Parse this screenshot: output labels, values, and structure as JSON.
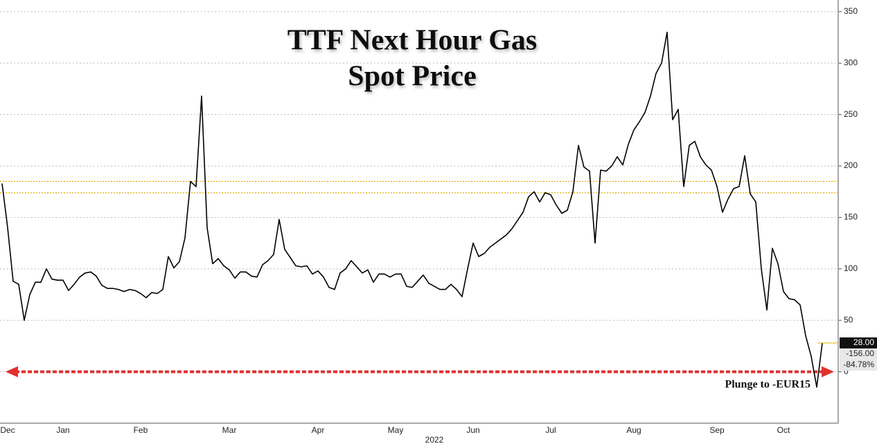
{
  "chart_data": {
    "type": "line",
    "title_lines": [
      "TTF Next Hour Gas",
      "Spot Price"
    ],
    "categories": [
      null,
      "Dec",
      null,
      null,
      null,
      null,
      null,
      null,
      null,
      null,
      null,
      "Jan",
      null,
      null,
      null,
      null,
      null,
      null,
      null,
      null,
      null,
      null,
      null,
      null,
      null,
      "Feb",
      null,
      null,
      null,
      null,
      null,
      null,
      null,
      null,
      null,
      null,
      null,
      null,
      null,
      null,
      null,
      "Mar",
      null,
      null,
      null,
      null,
      null,
      null,
      null,
      null,
      null,
      null,
      null,
      null,
      null,
      null,
      null,
      "Apr",
      null,
      null,
      null,
      null,
      null,
      null,
      null,
      null,
      null,
      null,
      null,
      null,
      null,
      "May",
      null,
      null,
      null,
      null,
      null,
      null,
      null,
      null,
      null,
      null,
      null,
      null,
      null,
      "Jun",
      null,
      null,
      null,
      null,
      null,
      null,
      null,
      null,
      null,
      null,
      null,
      null,
      null,
      "Jul",
      null,
      null,
      null,
      null,
      null,
      null,
      null,
      null,
      null,
      null,
      null,
      null,
      null,
      null,
      "Aug",
      null,
      null,
      null,
      null,
      null,
      null,
      null,
      null,
      null,
      null,
      null,
      null,
      null,
      null,
      "Sep",
      null,
      null,
      null,
      null,
      null,
      null,
      null,
      null,
      null,
      null,
      null,
      "Oct",
      null,
      null,
      null,
      null,
      null,
      null,
      null
    ],
    "year_label": "2022",
    "series": [
      {
        "color": "#000000",
        "values": [
          183,
          140,
          88,
          85,
          50,
          75,
          87,
          87,
          100,
          90,
          89,
          89,
          79,
          85,
          92,
          96,
          97,
          93,
          84,
          81,
          81,
          80,
          78,
          80,
          79,
          76,
          72,
          77,
          76,
          80,
          112,
          101,
          107,
          130,
          185,
          180,
          268,
          140,
          105,
          110,
          103,
          99,
          91,
          97,
          97,
          93,
          92,
          104,
          108,
          114,
          148,
          119,
          111,
          103,
          102,
          103,
          95,
          98,
          92,
          82,
          80,
          96,
          100,
          108,
          102,
          96,
          99,
          87,
          95,
          95,
          92,
          95,
          95,
          83,
          82,
          88,
          94,
          86,
          83,
          80,
          80,
          85,
          80,
          73,
          100,
          125,
          112,
          115,
          121,
          125,
          129,
          133,
          139,
          147,
          155,
          170,
          175,
          165,
          174,
          172,
          162,
          154,
          157,
          175,
          220,
          199,
          195,
          125,
          196,
          195,
          200,
          209,
          201,
          221,
          235,
          243,
          252,
          268,
          290,
          300,
          330,
          245,
          255,
          180,
          220,
          224,
          209,
          201,
          196,
          180,
          155,
          168,
          178,
          180,
          210,
          173,
          165,
          100,
          60,
          120,
          105,
          78,
          71,
          70,
          65,
          35,
          15,
          -15,
          28
        ]
      }
    ],
    "ylim": [
      -50,
      358
    ],
    "yticks": [
      0,
      50,
      100,
      150,
      200,
      250,
      300,
      350
    ],
    "grid": true,
    "reference_lines": {
      "color": "#e0b000",
      "values": [
        185,
        174
      ]
    },
    "arrow": {
      "color": "#e03030",
      "value": 0,
      "label": "Plunge to -EUR15"
    },
    "last_value": {
      "value": 28,
      "labels": [
        "28.00",
        "-156.00",
        "-84.78%"
      ]
    }
  }
}
